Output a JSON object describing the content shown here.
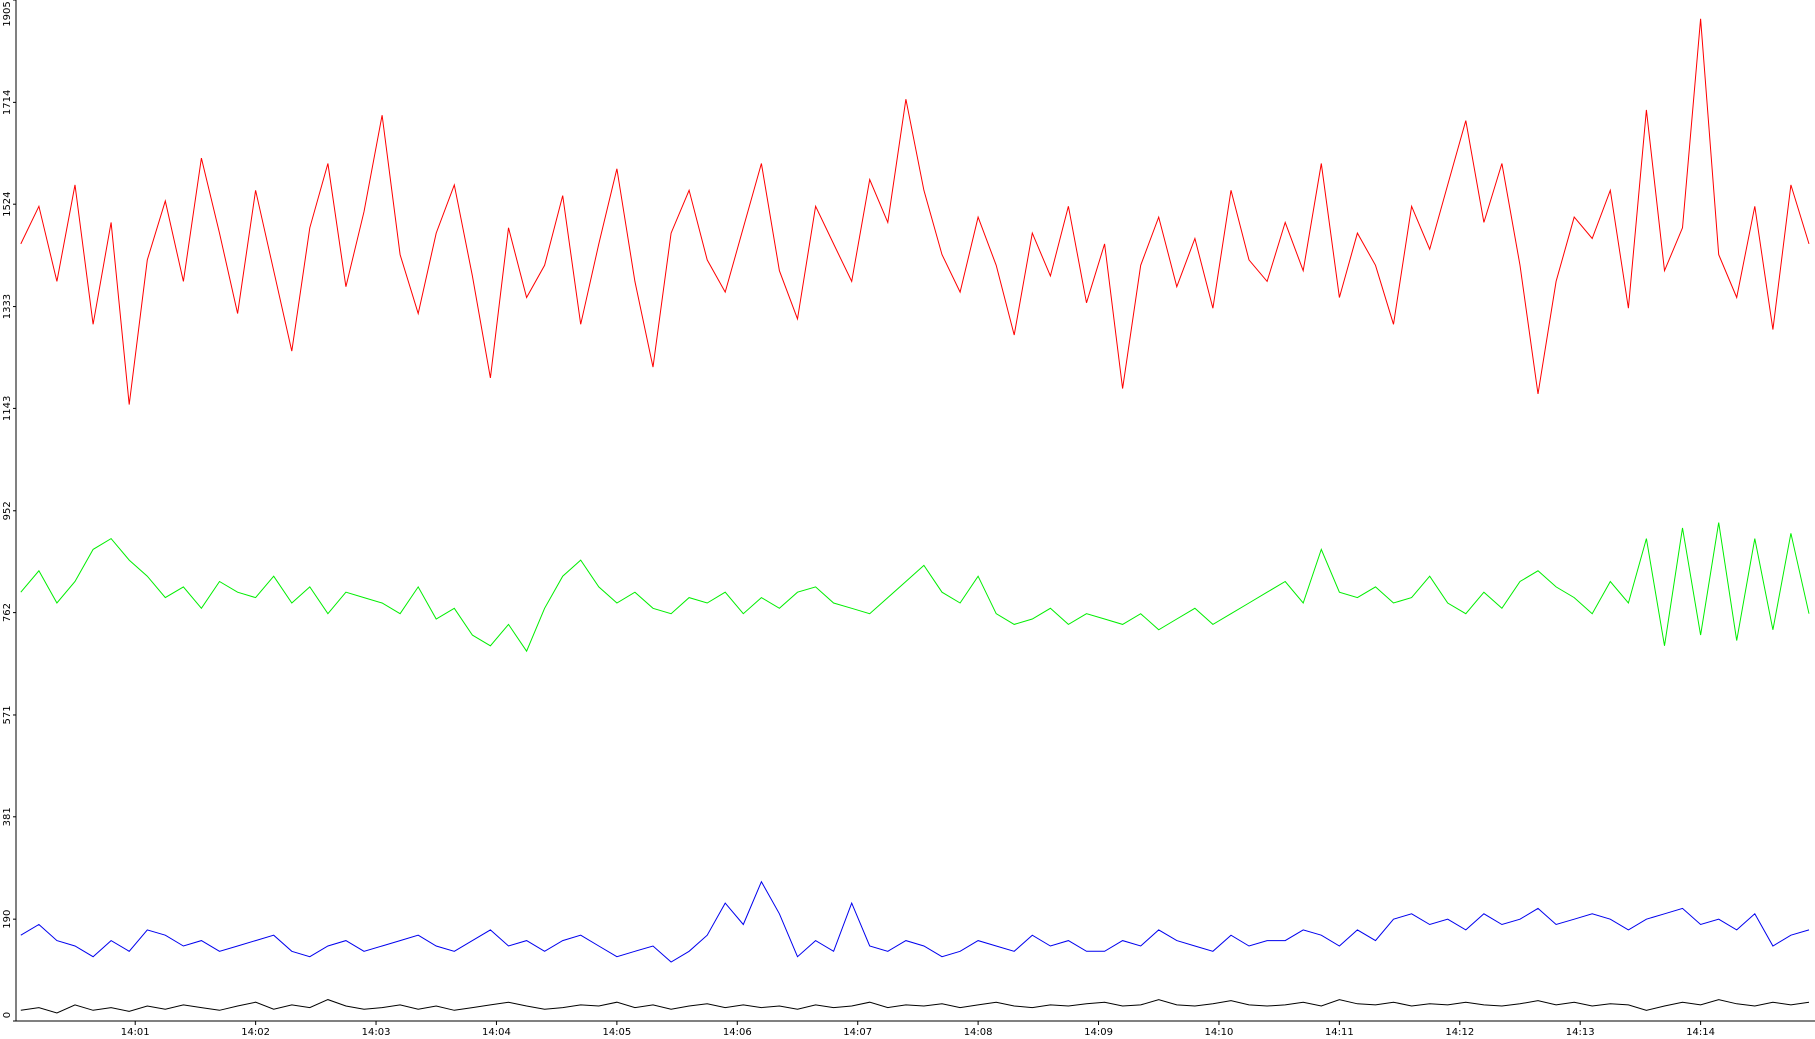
{
  "chart_data": {
    "type": "line",
    "x": [
      0.05,
      0.2,
      0.35,
      0.5,
      0.65,
      0.8,
      0.95,
      1.1,
      1.25,
      1.4,
      1.55,
      1.7,
      1.85,
      2,
      2.15,
      2.3,
      2.45,
      2.6,
      2.75,
      2.9,
      3.05,
      3.2,
      3.35,
      3.5,
      3.65,
      3.8,
      3.95,
      4.1,
      4.25,
      4.4,
      4.55,
      4.7,
      4.85,
      5,
      5.15,
      5.3,
      5.45,
      5.6,
      5.75,
      5.9,
      6.05,
      6.2,
      6.35,
      6.5,
      6.65,
      6.8,
      6.95,
      7.1,
      7.25,
      7.4,
      7.55,
      7.7,
      7.85,
      8,
      8.15,
      8.3,
      8.45,
      8.6,
      8.75,
      8.9,
      9.05,
      9.2,
      9.35,
      9.5,
      9.65,
      9.8,
      9.95,
      10.1,
      10.25,
      10.4,
      10.55,
      10.7,
      10.85,
      11,
      11.15,
      11.3,
      11.45,
      11.6,
      11.75,
      11.9,
      12.05,
      12.2,
      12.35,
      12.5,
      12.65,
      12.8,
      12.95,
      13.1,
      13.25,
      13.4,
      13.55,
      13.7,
      13.85,
      14,
      14.15,
      14.3,
      14.45,
      14.6,
      14.75,
      14.9
    ],
    "series": [
      {
        "color": "#ff0000",
        "values": [
          1450,
          1520,
          1380,
          1560,
          1300,
          1490,
          1150,
          1420,
          1530,
          1380,
          1610,
          1470,
          1320,
          1550,
          1400,
          1250,
          1480,
          1600,
          1370,
          1510,
          1690,
          1430,
          1320,
          1470,
          1560,
          1390,
          1200,
          1480,
          1350,
          1410,
          1540,
          1300,
          1450,
          1590,
          1380,
          1220,
          1470,
          1550,
          1420,
          1360,
          1480,
          1600,
          1400,
          1310,
          1520,
          1450,
          1380,
          1570,
          1490,
          1720,
          1550,
          1430,
          1360,
          1500,
          1410,
          1280,
          1470,
          1390,
          1520,
          1340,
          1450,
          1180,
          1410,
          1500,
          1370,
          1460,
          1330,
          1550,
          1420,
          1380,
          1490,
          1400,
          1600,
          1350,
          1470,
          1410,
          1300,
          1520,
          1440,
          1560,
          1680,
          1490,
          1600,
          1410,
          1170,
          1380,
          1500,
          1460,
          1550,
          1330,
          1700,
          1400,
          1480,
          1870,
          1430,
          1350,
          1520,
          1290,
          1560,
          1450
        ]
      },
      {
        "color": "#00ee00",
        "values": [
          800,
          840,
          780,
          820,
          880,
          900,
          860,
          830,
          790,
          810,
          770,
          820,
          800,
          790,
          830,
          780,
          810,
          760,
          800,
          790,
          780,
          760,
          810,
          750,
          770,
          720,
          700,
          740,
          690,
          770,
          830,
          860,
          810,
          780,
          800,
          770,
          760,
          790,
          780,
          800,
          760,
          790,
          770,
          800,
          810,
          780,
          770,
          760,
          790,
          820,
          850,
          800,
          780,
          830,
          760,
          740,
          750,
          770,
          740,
          760,
          750,
          740,
          760,
          730,
          750,
          770,
          740,
          760,
          780,
          800,
          820,
          780,
          880,
          800,
          790,
          810,
          780,
          790,
          830,
          780,
          760,
          800,
          770,
          820,
          840,
          810,
          790,
          760,
          820,
          780,
          900,
          700,
          920,
          720,
          930,
          710,
          900,
          730,
          910,
          760
        ]
      },
      {
        "color": "#0000ee",
        "values": [
          160,
          180,
          150,
          140,
          120,
          150,
          130,
          170,
          160,
          140,
          150,
          130,
          140,
          150,
          160,
          130,
          120,
          140,
          150,
          130,
          140,
          150,
          160,
          140,
          130,
          150,
          170,
          140,
          150,
          130,
          150,
          160,
          140,
          120,
          130,
          140,
          110,
          130,
          160,
          220,
          180,
          260,
          200,
          120,
          150,
          130,
          220,
          140,
          130,
          150,
          140,
          120,
          130,
          150,
          140,
          130,
          160,
          140,
          150,
          130,
          130,
          150,
          140,
          170,
          150,
          140,
          130,
          160,
          140,
          150,
          150,
          170,
          160,
          140,
          170,
          150,
          190,
          200,
          180,
          190,
          170,
          200,
          180,
          190,
          210,
          180,
          190,
          200,
          190,
          170,
          190,
          200,
          210,
          180,
          190,
          170,
          200,
          140,
          160,
          170
        ]
      },
      {
        "color": "#000000",
        "values": [
          20,
          25,
          15,
          30,
          20,
          25,
          18,
          28,
          22,
          30,
          25,
          20,
          28,
          35,
          22,
          30,
          25,
          40,
          28,
          22,
          25,
          30,
          22,
          28,
          20,
          25,
          30,
          35,
          28,
          22,
          25,
          30,
          28,
          35,
          25,
          30,
          22,
          28,
          32,
          25,
          30,
          25,
          28,
          22,
          30,
          25,
          28,
          35,
          25,
          30,
          28,
          32,
          25,
          30,
          35,
          28,
          25,
          30,
          28,
          32,
          35,
          28,
          30,
          40,
          30,
          28,
          32,
          38,
          30,
          28,
          30,
          35,
          28,
          40,
          32,
          30,
          35,
          28,
          32,
          30,
          35,
          30,
          28,
          32,
          38,
          30,
          35,
          28,
          32,
          30,
          20,
          28,
          35,
          30,
          40,
          32,
          28,
          35,
          30,
          35
        ]
      }
    ],
    "xlim": [
      0.01,
      14.95
    ],
    "xticks": [
      {
        "value": 1,
        "label": "14:01"
      },
      {
        "value": 2,
        "label": "14:02"
      },
      {
        "value": 3,
        "label": "14:03"
      },
      {
        "value": 4,
        "label": "14:04"
      },
      {
        "value": 5,
        "label": "14:05"
      },
      {
        "value": 6,
        "label": "14:06"
      },
      {
        "value": 7,
        "label": "14:07"
      },
      {
        "value": 8,
        "label": "14:08"
      },
      {
        "value": 9,
        "label": "14:09"
      },
      {
        "value": 10,
        "label": "14:10"
      },
      {
        "value": 11,
        "label": "14:11"
      },
      {
        "value": 12,
        "label": "14:12"
      },
      {
        "value": 13,
        "label": "14:13"
      },
      {
        "value": 14,
        "label": "14:14"
      }
    ],
    "ylim": [
      0,
      1905
    ],
    "yticks": [
      0,
      190,
      381,
      571,
      762,
      952,
      1143,
      1333,
      1524,
      1714,
      1905
    ],
    "grid": false
  }
}
